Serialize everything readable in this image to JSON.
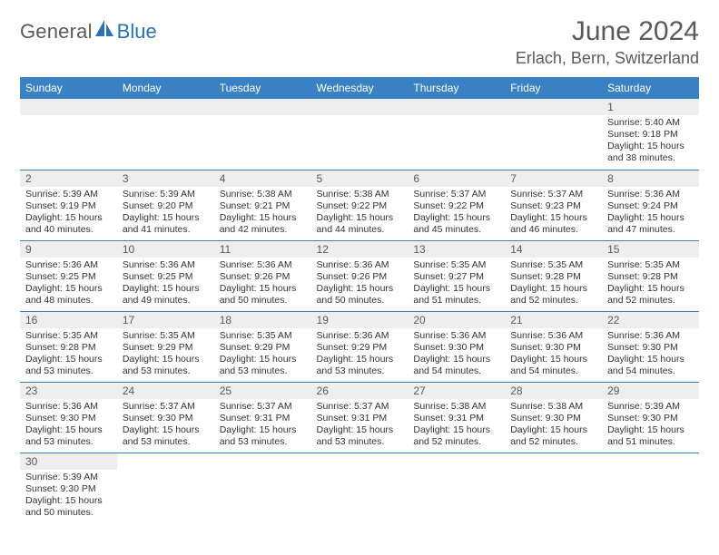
{
  "brand": {
    "general": "General",
    "blue": "Blue"
  },
  "title": "June 2024",
  "location": "Erlach, Bern, Switzerland",
  "colors": {
    "header_bg": "#3a81c4",
    "header_text": "#ffffff",
    "daynum_bg": "#eeeeee",
    "text": "#333333",
    "title": "#5a5a5a",
    "row_divider": "#3a81c4",
    "logo_blue": "#2a72b8"
  },
  "weekdays": [
    "Sunday",
    "Monday",
    "Tuesday",
    "Wednesday",
    "Thursday",
    "Friday",
    "Saturday"
  ],
  "weeks": [
    [
      {
        "n": "",
        "sr": "",
        "ss": "",
        "dl": ""
      },
      {
        "n": "",
        "sr": "",
        "ss": "",
        "dl": ""
      },
      {
        "n": "",
        "sr": "",
        "ss": "",
        "dl": ""
      },
      {
        "n": "",
        "sr": "",
        "ss": "",
        "dl": ""
      },
      {
        "n": "",
        "sr": "",
        "ss": "",
        "dl": ""
      },
      {
        "n": "",
        "sr": "",
        "ss": "",
        "dl": ""
      },
      {
        "n": "1",
        "sr": "Sunrise: 5:40 AM",
        "ss": "Sunset: 9:18 PM",
        "dl": "Daylight: 15 hours and 38 minutes."
      }
    ],
    [
      {
        "n": "2",
        "sr": "Sunrise: 5:39 AM",
        "ss": "Sunset: 9:19 PM",
        "dl": "Daylight: 15 hours and 40 minutes."
      },
      {
        "n": "3",
        "sr": "Sunrise: 5:39 AM",
        "ss": "Sunset: 9:20 PM",
        "dl": "Daylight: 15 hours and 41 minutes."
      },
      {
        "n": "4",
        "sr": "Sunrise: 5:38 AM",
        "ss": "Sunset: 9:21 PM",
        "dl": "Daylight: 15 hours and 42 minutes."
      },
      {
        "n": "5",
        "sr": "Sunrise: 5:38 AM",
        "ss": "Sunset: 9:22 PM",
        "dl": "Daylight: 15 hours and 44 minutes."
      },
      {
        "n": "6",
        "sr": "Sunrise: 5:37 AM",
        "ss": "Sunset: 9:22 PM",
        "dl": "Daylight: 15 hours and 45 minutes."
      },
      {
        "n": "7",
        "sr": "Sunrise: 5:37 AM",
        "ss": "Sunset: 9:23 PM",
        "dl": "Daylight: 15 hours and 46 minutes."
      },
      {
        "n": "8",
        "sr": "Sunrise: 5:36 AM",
        "ss": "Sunset: 9:24 PM",
        "dl": "Daylight: 15 hours and 47 minutes."
      }
    ],
    [
      {
        "n": "9",
        "sr": "Sunrise: 5:36 AM",
        "ss": "Sunset: 9:25 PM",
        "dl": "Daylight: 15 hours and 48 minutes."
      },
      {
        "n": "10",
        "sr": "Sunrise: 5:36 AM",
        "ss": "Sunset: 9:25 PM",
        "dl": "Daylight: 15 hours and 49 minutes."
      },
      {
        "n": "11",
        "sr": "Sunrise: 5:36 AM",
        "ss": "Sunset: 9:26 PM",
        "dl": "Daylight: 15 hours and 50 minutes."
      },
      {
        "n": "12",
        "sr": "Sunrise: 5:36 AM",
        "ss": "Sunset: 9:26 PM",
        "dl": "Daylight: 15 hours and 50 minutes."
      },
      {
        "n": "13",
        "sr": "Sunrise: 5:35 AM",
        "ss": "Sunset: 9:27 PM",
        "dl": "Daylight: 15 hours and 51 minutes."
      },
      {
        "n": "14",
        "sr": "Sunrise: 5:35 AM",
        "ss": "Sunset: 9:28 PM",
        "dl": "Daylight: 15 hours and 52 minutes."
      },
      {
        "n": "15",
        "sr": "Sunrise: 5:35 AM",
        "ss": "Sunset: 9:28 PM",
        "dl": "Daylight: 15 hours and 52 minutes."
      }
    ],
    [
      {
        "n": "16",
        "sr": "Sunrise: 5:35 AM",
        "ss": "Sunset: 9:28 PM",
        "dl": "Daylight: 15 hours and 53 minutes."
      },
      {
        "n": "17",
        "sr": "Sunrise: 5:35 AM",
        "ss": "Sunset: 9:29 PM",
        "dl": "Daylight: 15 hours and 53 minutes."
      },
      {
        "n": "18",
        "sr": "Sunrise: 5:35 AM",
        "ss": "Sunset: 9:29 PM",
        "dl": "Daylight: 15 hours and 53 minutes."
      },
      {
        "n": "19",
        "sr": "Sunrise: 5:36 AM",
        "ss": "Sunset: 9:29 PM",
        "dl": "Daylight: 15 hours and 53 minutes."
      },
      {
        "n": "20",
        "sr": "Sunrise: 5:36 AM",
        "ss": "Sunset: 9:30 PM",
        "dl": "Daylight: 15 hours and 54 minutes."
      },
      {
        "n": "21",
        "sr": "Sunrise: 5:36 AM",
        "ss": "Sunset: 9:30 PM",
        "dl": "Daylight: 15 hours and 54 minutes."
      },
      {
        "n": "22",
        "sr": "Sunrise: 5:36 AM",
        "ss": "Sunset: 9:30 PM",
        "dl": "Daylight: 15 hours and 54 minutes."
      }
    ],
    [
      {
        "n": "23",
        "sr": "Sunrise: 5:36 AM",
        "ss": "Sunset: 9:30 PM",
        "dl": "Daylight: 15 hours and 53 minutes."
      },
      {
        "n": "24",
        "sr": "Sunrise: 5:37 AM",
        "ss": "Sunset: 9:30 PM",
        "dl": "Daylight: 15 hours and 53 minutes."
      },
      {
        "n": "25",
        "sr": "Sunrise: 5:37 AM",
        "ss": "Sunset: 9:31 PM",
        "dl": "Daylight: 15 hours and 53 minutes."
      },
      {
        "n": "26",
        "sr": "Sunrise: 5:37 AM",
        "ss": "Sunset: 9:31 PM",
        "dl": "Daylight: 15 hours and 53 minutes."
      },
      {
        "n": "27",
        "sr": "Sunrise: 5:38 AM",
        "ss": "Sunset: 9:31 PM",
        "dl": "Daylight: 15 hours and 52 minutes."
      },
      {
        "n": "28",
        "sr": "Sunrise: 5:38 AM",
        "ss": "Sunset: 9:30 PM",
        "dl": "Daylight: 15 hours and 52 minutes."
      },
      {
        "n": "29",
        "sr": "Sunrise: 5:39 AM",
        "ss": "Sunset: 9:30 PM",
        "dl": "Daylight: 15 hours and 51 minutes."
      }
    ],
    [
      {
        "n": "30",
        "sr": "Sunrise: 5:39 AM",
        "ss": "Sunset: 9:30 PM",
        "dl": "Daylight: 15 hours and 50 minutes."
      },
      {
        "n": "",
        "sr": "",
        "ss": "",
        "dl": ""
      },
      {
        "n": "",
        "sr": "",
        "ss": "",
        "dl": ""
      },
      {
        "n": "",
        "sr": "",
        "ss": "",
        "dl": ""
      },
      {
        "n": "",
        "sr": "",
        "ss": "",
        "dl": ""
      },
      {
        "n": "",
        "sr": "",
        "ss": "",
        "dl": ""
      },
      {
        "n": "",
        "sr": "",
        "ss": "",
        "dl": ""
      }
    ]
  ]
}
